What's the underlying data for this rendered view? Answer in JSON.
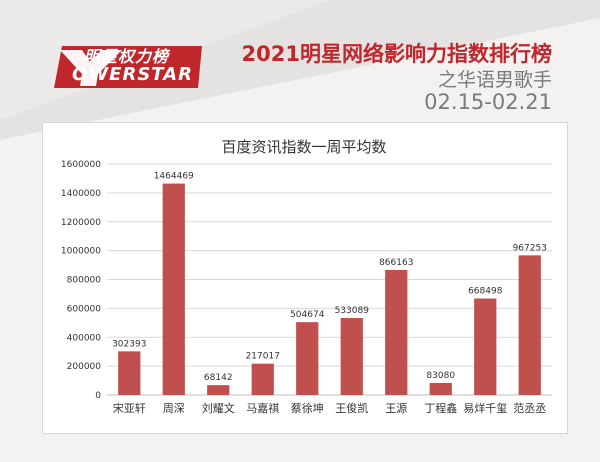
{
  "header": {
    "logo_cn": "明星权力榜",
    "logo_en": "OWERSTAR",
    "title": "2021明星网络影响力指数排行榜",
    "subtitle": "之华语男歌手",
    "date_range": "02.15-02.21"
  },
  "colors": {
    "brand_red": "#c0272d",
    "bar": "#c0504d",
    "grid": "#d9d9d9"
  },
  "chart_data": {
    "type": "bar",
    "title": "百度资讯指数一周平均数",
    "categories": [
      "宋亚轩",
      "周深",
      "刘耀文",
      "马嘉祺",
      "蔡徐坤",
      "王俊凯",
      "王源",
      "丁程鑫",
      "易烊千玺",
      "范丞丞"
    ],
    "values": [
      302393,
      1464469,
      68142,
      217017,
      504674,
      533089,
      866163,
      83080,
      668498,
      967253
    ],
    "yticks": [
      "0",
      "200000",
      "400000",
      "600000",
      "800000",
      "1000000",
      "1200000",
      "1400000",
      "1600000"
    ],
    "ylim": [
      0,
      1600000
    ],
    "grid": true,
    "legend": "none"
  }
}
